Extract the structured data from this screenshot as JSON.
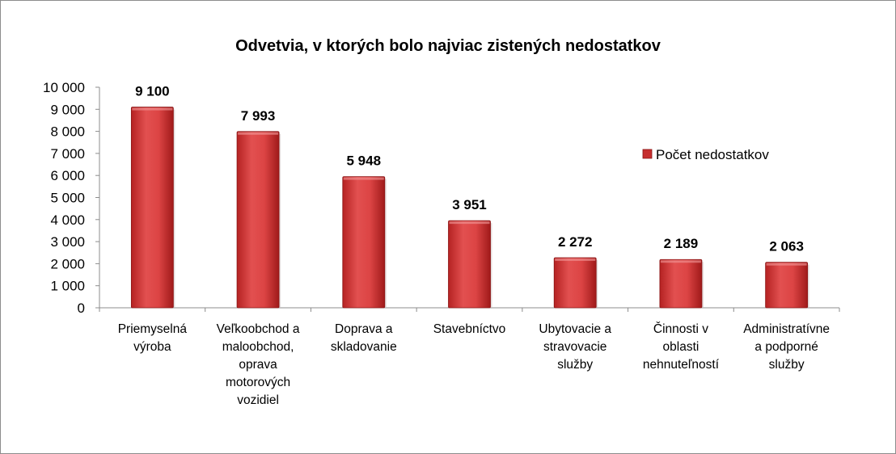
{
  "chart_data": {
    "type": "bar",
    "title": "Odvetvia, v ktorých bolo najviac zistených nedostatkov",
    "categories": [
      [
        "Priemyselná",
        "výroba"
      ],
      [
        "Veľkoobchod a",
        "maloobchod,",
        "oprava",
        "motorových",
        "vozidiel"
      ],
      [
        "Doprava a",
        "skladovanie"
      ],
      [
        "Stavebníctvo"
      ],
      [
        "Ubytovacie a",
        "stravovacie",
        "služby"
      ],
      [
        "Činnosti v",
        "oblasti",
        "nehnuteľností"
      ],
      [
        "Administratívne",
        "a podporné",
        "služby"
      ]
    ],
    "series": [
      {
        "name": "Počet nedostatkov",
        "values": [
          9100,
          7993,
          5948,
          3951,
          2272,
          2189,
          2063
        ],
        "data_labels": [
          "9 100",
          "7 993",
          "5 948",
          "3 951",
          "2 272",
          "2 189",
          "2 063"
        ]
      }
    ],
    "ylim": [
      0,
      10000
    ],
    "yticks": [
      "0",
      "1 000",
      "2 000",
      "3 000",
      "4 000",
      "5 000",
      "6 000",
      "7 000",
      "8 000",
      "9 000",
      "10 000"
    ],
    "xlabel": "",
    "ylabel": "",
    "grid": false,
    "legend": "right",
    "colors": {
      "bar": "#d83b3b",
      "bar_dark": "#a61c1c",
      "bar_light": "#e86a6a",
      "axis": "#8c8c8c"
    }
  }
}
